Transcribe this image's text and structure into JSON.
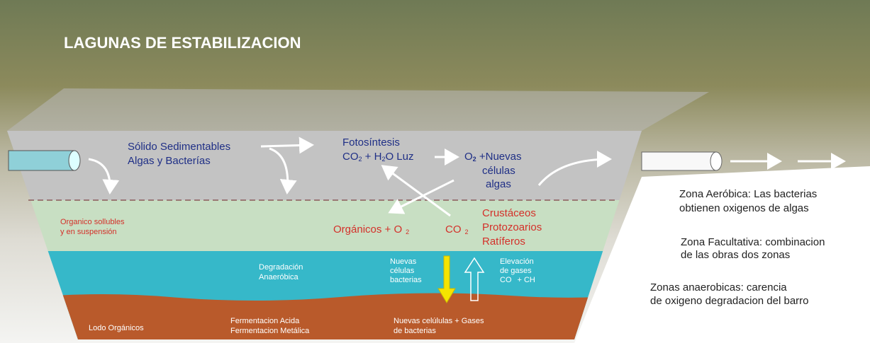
{
  "title": "LAGUNAS DE ESTABILIZACION",
  "aerobic": {
    "solids": [
      "Sólido Sedimentables",
      "Algas y Bacterías"
    ],
    "photosynthesis": {
      "label": "Fotosíntesis",
      "formula": [
        "CO",
        "2",
        " + H",
        "2",
        "O Luz"
      ]
    },
    "products": {
      "formula": [
        "O",
        "2",
        " +Nuevas"
      ],
      "lines": [
        "células",
        "algas"
      ]
    }
  },
  "facultative": {
    "organics": [
      "Organico  sollubles",
      "y en suspensión"
    ],
    "reaction": [
      "Orgánicos + O",
      "2",
      "CO",
      "2"
    ],
    "organisms": [
      "Crustáceos",
      "Protozoarios",
      "Ratíferos"
    ]
  },
  "anaerobic": {
    "degradation": [
      "Degradación",
      "Anaeróbica"
    ],
    "new_cells": [
      "Nuevas",
      "células",
      "bacterias"
    ],
    "gases": [
      "Elevación",
      "de gases",
      "CO",
      "+ CH"
    ]
  },
  "sludge": {
    "label": "Lodo Orgánicos",
    "fermentation": [
      "Fermentacion Acida",
      "Fermentacion Metálica"
    ],
    "products": [
      "Nuevas celúlulas + Gases",
      "de bacterias"
    ]
  },
  "legend": [
    [
      "Zona Aeróbica: Las bacterias",
      "obtienen oxigenos de algas"
    ],
    [
      "Zona Facultativa: combinacion",
      "de las obras dos zonas"
    ],
    [
      "Zonas anaerobicas: carencia",
      "de oxigeno degradacion del barro"
    ]
  ]
}
